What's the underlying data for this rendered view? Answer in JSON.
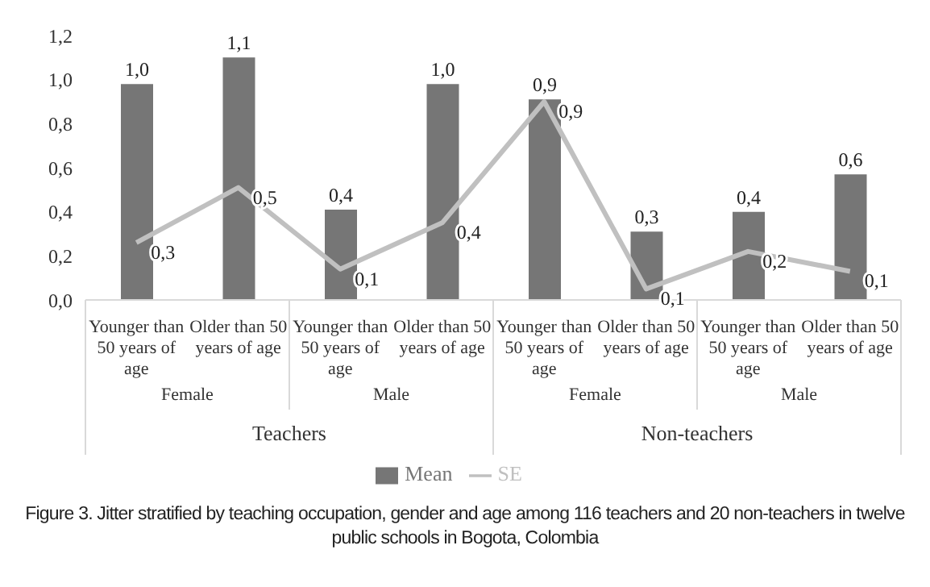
{
  "chart_data": {
    "type": "bar",
    "title": "Figure 3. Jitter stratified by teaching occupation, gender and age among 116 teachers and 20 non-teachers in twelve public schools in Bogota, Colombia",
    "categories": [
      "Younger than 50 years of age",
      "Older than 50 years of age",
      "Younger than 50 years of age",
      "Older than 50 years of age",
      "Younger than 50 years of age",
      "Older than 50 years of age",
      "Younger than 50 years of age",
      "Older than 50 years of age"
    ],
    "annotations": [
      "Female",
      "Male",
      "Female",
      "Male",
      "Teachers",
      "Non-teachers"
    ],
    "series": [
      {
        "name": "Mean",
        "color": "#767676",
        "values": [
          0.98,
          1.1,
          0.41,
          0.98,
          0.91,
          0.31,
          0.4,
          0.57
        ],
        "value_labels": [
          "1,0",
          "1,1",
          "0,4",
          "1,0",
          "0,9",
          "0,3",
          "0,4",
          "0,6"
        ]
      },
      {
        "name": "SE",
        "type": "line",
        "color": "#c0c0c0",
        "values": [
          0.26,
          0.51,
          0.14,
          0.35,
          0.9,
          0.05,
          0.22,
          0.13
        ],
        "value_labels": [
          "0,3",
          "0,5",
          "0,1",
          "0,4",
          "0,9",
          "0,1",
          "0,2",
          "0,1"
        ]
      }
    ],
    "ylim": [
      0,
      1.2
    ],
    "yticks": [
      {
        "value": 0,
        "label": "0,0"
      },
      {
        "value": 0.2,
        "label": "0,2"
      },
      {
        "value": 0.4,
        "label": "0,4"
      },
      {
        "value": 0.6,
        "label": "0,6"
      },
      {
        "value": 0.8,
        "label": "0,8"
      },
      {
        "value": 1,
        "label": "1,0"
      },
      {
        "value": 1.2,
        "label": "1,2"
      }
    ],
    "grid": false,
    "legend": "bottom",
    "marker": "none",
    "line_style": "solid"
  }
}
